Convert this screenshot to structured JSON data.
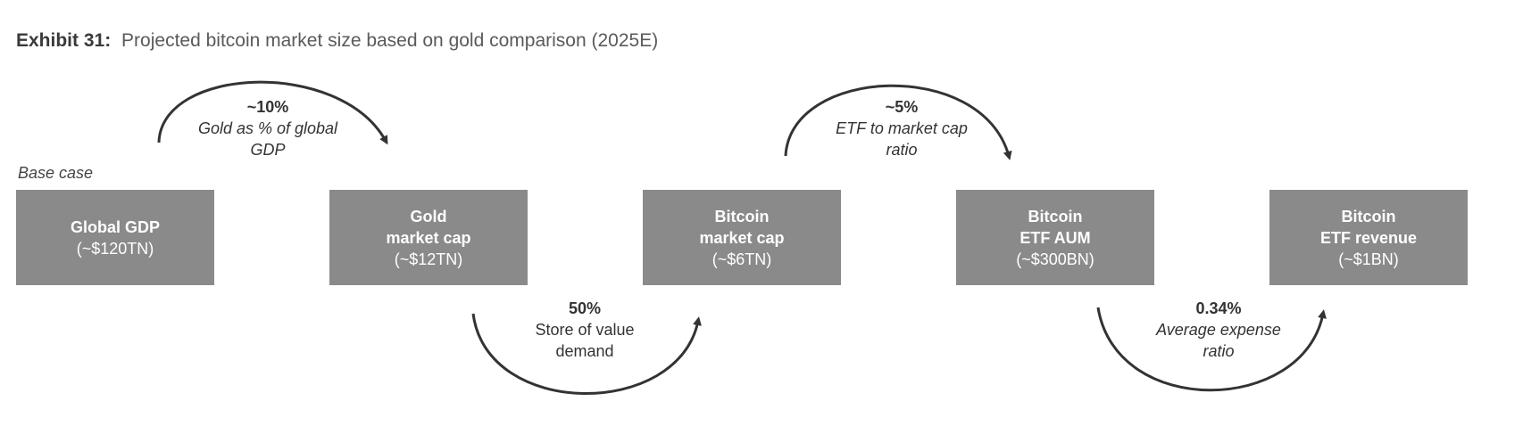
{
  "title": {
    "label": "Exhibit 31:",
    "text": "Projected bitcoin market size based on gold comparison (2025E)"
  },
  "base_case": "Base case",
  "boxes": [
    {
      "name": "Global GDP",
      "value": "(~$120TN)"
    },
    {
      "name": "Gold\nmarket cap",
      "value": "(~$12TN)"
    },
    {
      "name": "Bitcoin\nmarket cap",
      "value": "(~$6TN)"
    },
    {
      "name": "Bitcoin\nETF AUM",
      "value": "(~$300BN)"
    },
    {
      "name": "Bitcoin\nETF revenue",
      "value": "(~$1BN)"
    }
  ],
  "transitions": [
    {
      "pct": "~10%",
      "desc": "Gold as % of global\nGDP",
      "position": "above",
      "italic": true
    },
    {
      "pct": "50%",
      "desc": "Store of value\ndemand",
      "position": "below",
      "italic": false
    },
    {
      "pct": "~5%",
      "desc": "ETF to market cap\nratio",
      "position": "above",
      "italic": true
    },
    {
      "pct": "0.34%",
      "desc": "Average expense\nratio",
      "position": "below",
      "italic": true
    }
  ],
  "colors": {
    "box_fill": "#8a8a8a",
    "box_text": "#ffffff",
    "arrow": "#333333"
  }
}
